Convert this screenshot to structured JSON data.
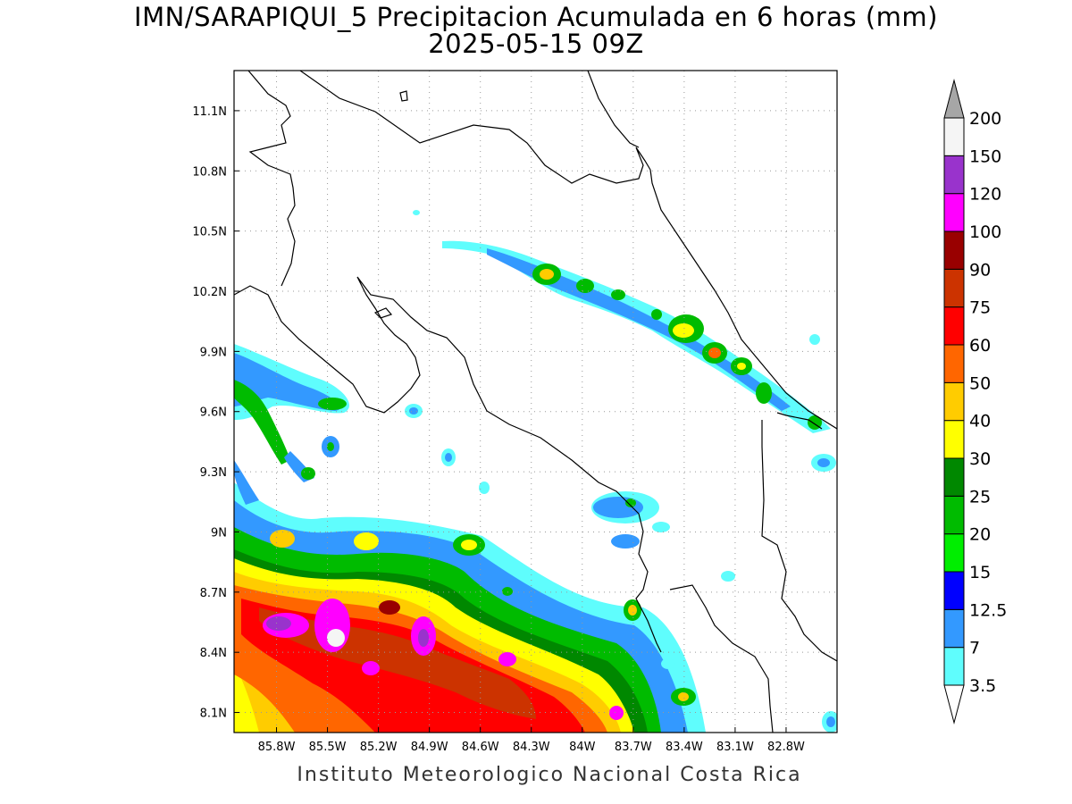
{
  "header": {
    "title": "IMN/SARAPIQUI_5 Precipitacion Acumulada en 6 horas (mm)",
    "subtitle": "2025-05-15 09Z"
  },
  "footer": {
    "credit": "Instituto Meteorologico Nacional Costa Rica"
  },
  "map": {
    "lon_range": [
      -86.05,
      -82.5
    ],
    "lat_range": [
      8.0,
      11.3
    ],
    "lat_ticks": [
      {
        "value": 11.1,
        "label": "11.1N"
      },
      {
        "value": 10.8,
        "label": "10.8N"
      },
      {
        "value": 10.5,
        "label": "10.5N"
      },
      {
        "value": 10.2,
        "label": "10.2N"
      },
      {
        "value": 9.9,
        "label": "9.9N"
      },
      {
        "value": 9.6,
        "label": "9.6N"
      },
      {
        "value": 9.3,
        "label": "9.3N"
      },
      {
        "value": 9.0,
        "label": "9N"
      },
      {
        "value": 8.7,
        "label": "8.7N"
      },
      {
        "value": 8.4,
        "label": "8.4N"
      },
      {
        "value": 8.1,
        "label": "8.1N"
      }
    ],
    "lon_ticks": [
      {
        "value": -85.8,
        "label": "85.8W"
      },
      {
        "value": -85.5,
        "label": "85.5W"
      },
      {
        "value": -85.2,
        "label": "85.2W"
      },
      {
        "value": -84.9,
        "label": "84.9W"
      },
      {
        "value": -84.6,
        "label": "84.6W"
      },
      {
        "value": -84.3,
        "label": "84.3W"
      },
      {
        "value": -84.0,
        "label": "84W"
      },
      {
        "value": -83.7,
        "label": "83.7W"
      },
      {
        "value": -83.4,
        "label": "83.4W"
      },
      {
        "value": -83.1,
        "label": "83.1W"
      },
      {
        "value": -82.8,
        "label": "82.8W"
      }
    ],
    "grid": true
  },
  "colorbar": {
    "labels": [
      "3.5",
      "7",
      "12.5",
      "15",
      "20",
      "25",
      "30",
      "40",
      "50",
      "60",
      "75",
      "90",
      "100",
      "120",
      "150",
      "200"
    ],
    "colors": [
      "#5ffdfd",
      "#3399ff",
      "#0000ff",
      "#00ee00",
      "#00bb00",
      "#008800",
      "#ffff00",
      "#ffcc00",
      "#ff6600",
      "#ff0000",
      "#cc3300",
      "#990000",
      "#ff00ff",
      "#9933cc",
      "#f5f5f5"
    ],
    "top_arrow_color": "#a6a6a6",
    "bottom_arrow_color": "#ffffff"
  }
}
